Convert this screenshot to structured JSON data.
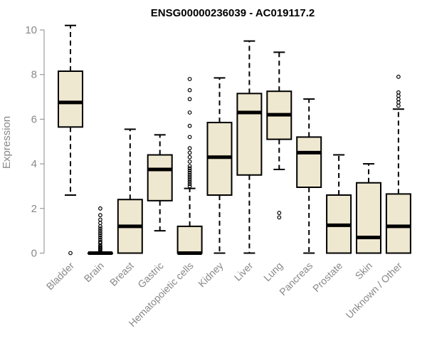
{
  "chart_data": {
    "type": "box",
    "title": "ENSG00000236039 - AC019117.2",
    "ylabel": "Expression",
    "xlabel": "",
    "ylim": [
      0,
      10.3
    ],
    "yticks": [
      0,
      2,
      4,
      6,
      8,
      10
    ],
    "colors": {
      "box_fill": "#efe8d0",
      "box_stroke": "#000000",
      "axis": "#888888"
    },
    "categories": [
      "Bladder",
      "Brain",
      "Breast",
      "Gastric",
      "Hematopoietic cells",
      "Kidney",
      "Liver",
      "Lung",
      "Pancreas",
      "Prostate",
      "Skin",
      "Unknown / Other"
    ],
    "boxes": [
      {
        "category": "Bladder",
        "whisker_low": 2.6,
        "q1": 5.65,
        "median": 6.75,
        "q3": 8.15,
        "whisker_high": 10.2,
        "outliers": [
          0.0
        ]
      },
      {
        "category": "Brain",
        "whisker_low": 0,
        "q1": 0,
        "median": 0,
        "q3": 0,
        "whisker_high": 0,
        "outliers": [
          0.05,
          0.1,
          0.15,
          0.2,
          0.25,
          0.3,
          0.35,
          0.45,
          0.5,
          0.6,
          0.7,
          0.8,
          0.9,
          1.0,
          1.1,
          1.2,
          1.35,
          1.5,
          1.7,
          2.0
        ]
      },
      {
        "category": "Breast",
        "whisker_low": 0,
        "q1": 0,
        "median": 1.2,
        "q3": 2.4,
        "whisker_high": 5.55,
        "outliers": []
      },
      {
        "category": "Gastric",
        "whisker_low": 1.0,
        "q1": 2.35,
        "median": 3.75,
        "q3": 4.4,
        "whisker_high": 5.3,
        "outliers": []
      },
      {
        "category": "Hematopoietic cells",
        "whisker_low": 0,
        "q1": 0,
        "median": 0,
        "q3": 1.2,
        "whisker_high": 2.9,
        "outliers": [
          3.0,
          3.1,
          3.2,
          3.3,
          3.4,
          3.5,
          3.6,
          3.7,
          3.8,
          3.9,
          4.1,
          4.3,
          4.5,
          4.7,
          5.2,
          5.7,
          6.3,
          6.9,
          7.3,
          7.8
        ]
      },
      {
        "category": "Kidney",
        "whisker_low": 0,
        "q1": 2.6,
        "median": 4.3,
        "q3": 5.85,
        "whisker_high": 7.85,
        "outliers": []
      },
      {
        "category": "Liver",
        "whisker_low": 0,
        "q1": 3.5,
        "median": 6.3,
        "q3": 7.15,
        "whisker_high": 9.5,
        "outliers": []
      },
      {
        "category": "Lung",
        "whisker_low": 3.75,
        "q1": 5.1,
        "median": 6.2,
        "q3": 7.25,
        "whisker_high": 9.0,
        "outliers": [
          1.6,
          1.8
        ]
      },
      {
        "category": "Pancreas",
        "whisker_low": 0,
        "q1": 2.95,
        "median": 4.5,
        "q3": 5.2,
        "whisker_high": 6.9,
        "outliers": []
      },
      {
        "category": "Prostate",
        "whisker_low": 0,
        "q1": 0,
        "median": 1.25,
        "q3": 2.6,
        "whisker_high": 4.4,
        "outliers": []
      },
      {
        "category": "Skin",
        "whisker_low": 0,
        "q1": 0,
        "median": 0.7,
        "q3": 3.15,
        "whisker_high": 4.0,
        "outliers": []
      },
      {
        "category": "Unknown / Other",
        "whisker_low": 0,
        "q1": 0,
        "median": 1.2,
        "q3": 2.65,
        "whisker_high": 6.45,
        "outliers": [
          6.6,
          6.75,
          6.9,
          7.05,
          7.2,
          7.9
        ]
      }
    ]
  }
}
